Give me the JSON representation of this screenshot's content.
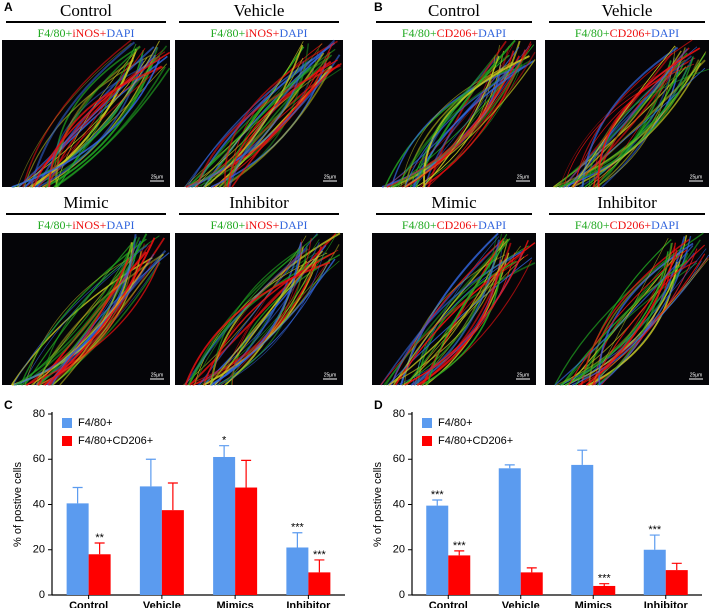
{
  "panels": [
    {
      "letter": "A",
      "images": [
        {
          "title": "Control",
          "stain": [
            {
              "text": "F4/80+",
              "color": "#22aa22"
            },
            {
              "text": "iNOS+",
              "color": "#ee1111"
            },
            {
              "text": "DAPI",
              "color": "#3366dd"
            }
          ],
          "scale": "25μm"
        },
        {
          "title": "Vehicle",
          "stain": [
            {
              "text": "F4/80+",
              "color": "#22aa22"
            },
            {
              "text": "iNOS+",
              "color": "#ee1111"
            },
            {
              "text": "DAPI",
              "color": "#3366dd"
            }
          ],
          "scale": "25μm"
        },
        {
          "title": "Mimic",
          "stain": [
            {
              "text": "F4/80+",
              "color": "#22aa22"
            },
            {
              "text": "iNOS+",
              "color": "#ee1111"
            },
            {
              "text": "DAPI",
              "color": "#3366dd"
            }
          ],
          "scale": "25μm"
        },
        {
          "title": "Inhibitor",
          "stain": [
            {
              "text": "F4/80+",
              "color": "#22aa22"
            },
            {
              "text": "iNOS+",
              "color": "#ee1111"
            },
            {
              "text": "DAPI",
              "color": "#3366dd"
            }
          ],
          "scale": "25μm"
        }
      ]
    },
    {
      "letter": "B",
      "images": [
        {
          "title": "Control",
          "stain": [
            {
              "text": "F4/80+",
              "color": "#22aa22"
            },
            {
              "text": "CD206+",
              "color": "#ee1111"
            },
            {
              "text": "DAPI",
              "color": "#3366dd"
            }
          ],
          "scale": "25μm"
        },
        {
          "title": "Vehicle",
          "stain": [
            {
              "text": "F4/80+",
              "color": "#22aa22"
            },
            {
              "text": "CD206+",
              "color": "#ee1111"
            },
            {
              "text": "DAPI",
              "color": "#3366dd"
            }
          ],
          "scale": "25μm"
        },
        {
          "title": "Mimic",
          "stain": [
            {
              "text": "F4/80+",
              "color": "#22aa22"
            },
            {
              "text": "CD206+",
              "color": "#ee1111"
            },
            {
              "text": "DAPI",
              "color": "#3366dd"
            }
          ],
          "scale": "25μm"
        },
        {
          "title": "Inhibitor",
          "stain": [
            {
              "text": "F4/80+",
              "color": "#22aa22"
            },
            {
              "text": "CD206+",
              "color": "#ee1111"
            },
            {
              "text": "DAPI",
              "color": "#3366dd"
            }
          ],
          "scale": "25μm"
        }
      ]
    }
  ],
  "chart_data": [
    {
      "type": "bar",
      "panel": "C",
      "y_label": "% of postive cells",
      "categories": [
        "Control",
        "Vehicle",
        "Mimics",
        "Inhibitor"
      ],
      "ylim": [
        0,
        80
      ],
      "yticks": [
        0,
        20,
        40,
        60,
        80
      ],
      "series": [
        {
          "name": "F4/80+",
          "color": "#5b9bef",
          "values": [
            40.5,
            48,
            61,
            21
          ],
          "errors": [
            7,
            12,
            5,
            6.5
          ],
          "stars": [
            null,
            null,
            "*",
            "***"
          ]
        },
        {
          "name": "F4/80+CD206+",
          "color": "#ff0000",
          "values": [
            18,
            37.5,
            47.5,
            10
          ],
          "errors": [
            5,
            12,
            12,
            5.5
          ],
          "stars": [
            "**",
            null,
            null,
            "***"
          ]
        }
      ]
    },
    {
      "type": "bar",
      "panel": "D",
      "y_label": "% of postive cells",
      "categories": [
        "Control",
        "Vehicle",
        "Mimics",
        "Inhibitor"
      ],
      "ylim": [
        0,
        80
      ],
      "yticks": [
        0,
        20,
        40,
        60,
        80
      ],
      "series": [
        {
          "name": "F4/80+",
          "color": "#5b9bef",
          "values": [
            39.5,
            56,
            57.5,
            20
          ],
          "errors": [
            2.5,
            1.5,
            6.5,
            6.5
          ],
          "stars": [
            "***",
            null,
            null,
            "***"
          ]
        },
        {
          "name": "F4/80+CD206+",
          "color": "#ff0000",
          "values": [
            17.5,
            10,
            4,
            11
          ],
          "errors": [
            2,
            2,
            1,
            3
          ],
          "stars": [
            "***",
            null,
            "***",
            null
          ]
        }
      ]
    }
  ]
}
